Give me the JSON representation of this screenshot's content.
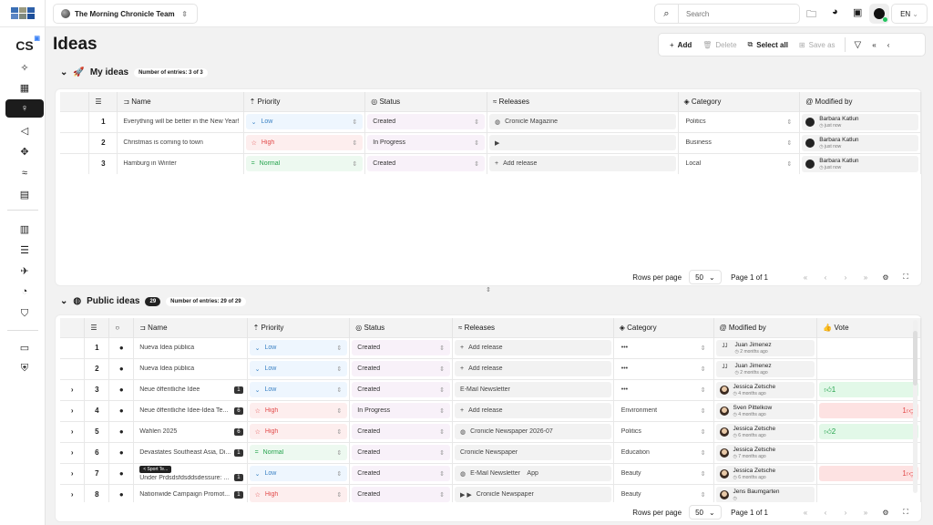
{
  "app": {
    "team": "The Morning Chronicle Team",
    "search_placeholder": "Search",
    "lang": "EN",
    "page_title": "Ideas",
    "cs_label": "CS"
  },
  "sidebar": {
    "icons": [
      "cs-icon",
      "sparkles-icon",
      "grid-icon",
      "lightbulb-icon",
      "megaphone-icon",
      "modules-icon",
      "rss-icon",
      "clipboard-icon",
      "library-icon",
      "database-icon",
      "satellite-icon",
      "palette-icon",
      "shield-check-icon",
      "server-icon",
      "shield-gear-icon"
    ],
    "active": "lightbulb-icon"
  },
  "toolbar": {
    "add": "Add",
    "delete": "Delete",
    "select_all": "Select all",
    "save_as": "Save as"
  },
  "my_ideas": {
    "title": "My ideas",
    "count_label": "Number of entries: 3 of 3",
    "columns": [
      "Name",
      "Priority",
      "Status",
      "Releases",
      "Category",
      "Modified by"
    ],
    "rows": [
      {
        "n": "1",
        "name": "Everything will be better in the New Year!",
        "priority": "Low",
        "status": "Created",
        "release": "Cronicle Magazine",
        "release_icon": "globe",
        "category": "Politics",
        "user": "Barbara Katlun",
        "time": "just now"
      },
      {
        "n": "2",
        "name": "Christmas is coming to town",
        "priority": "High",
        "status": "In Progress",
        "release": "",
        "release_icon": "youtube",
        "category": "Business",
        "user": "Barbara Katlun",
        "time": "just now"
      },
      {
        "n": "3",
        "name": "Hamburg in Winter",
        "priority": "Normal",
        "status": "Created",
        "release": "Add release",
        "release_icon": "plus",
        "category": "Local",
        "user": "Barbara Katlun",
        "time": "just now"
      }
    ],
    "pager": {
      "rows_per_page": "Rows per page",
      "size": "50",
      "page": "Page 1 of 1"
    }
  },
  "public_ideas": {
    "title": "Public ideas",
    "badge": "29",
    "count_label": "Number of entries: 29 of 29",
    "columns": [
      "Name",
      "Priority",
      "Status",
      "Releases",
      "Category",
      "Modified by",
      "Vote"
    ],
    "rows": [
      {
        "n": "1",
        "exp": false,
        "name": "Nueva Idea pública",
        "cnt": "",
        "priority": "Low",
        "status": "Created",
        "release": "Add release",
        "release_icon": "plus",
        "category": "•••",
        "user": "Juan Jimenez",
        "av": "jj",
        "time": "2 months ago",
        "vote": "",
        "vote_dir": ""
      },
      {
        "n": "2",
        "exp": false,
        "name": "Nueva Idea pública",
        "cnt": "",
        "priority": "Low",
        "status": "Created",
        "release": "Add release",
        "release_icon": "plus",
        "category": "•••",
        "user": "Juan Jimenez",
        "av": "jj",
        "time": "2 months ago",
        "vote": "",
        "vote_dir": ""
      },
      {
        "n": "3",
        "exp": true,
        "name": "Neue öffentliche Idee",
        "cnt": "1",
        "priority": "Low",
        "status": "Created",
        "release": "E-Mail Newsletter",
        "release_icon": "",
        "category": "•••",
        "user": "Jessica Zetsche",
        "av": "ph",
        "time": "4 months ago",
        "vote": "1",
        "vote_dir": "up"
      },
      {
        "n": "4",
        "exp": true,
        "name": "Neue öffentliche Idee-Idea Te...",
        "cnt": "6",
        "priority": "High",
        "status": "In Progress",
        "release": "Add release",
        "release_icon": "plus",
        "category": "Environment",
        "user": "Sven Pittelkow",
        "av": "ph",
        "time": "4 months ago",
        "vote": "1",
        "vote_dir": "down"
      },
      {
        "n": "5",
        "exp": true,
        "name": "Wahlen 2025",
        "cnt": "6",
        "priority": "High",
        "status": "Created",
        "release": "Cronicle Newspaper 2026-07",
        "release_icon": "globe",
        "category": "Politics",
        "user": "Jessica Zetsche",
        "av": "ph",
        "time": "6 months ago",
        "vote": "2",
        "vote_dir": "up"
      },
      {
        "n": "6",
        "exp": true,
        "name": "Devastates Southeast Asia, Di...",
        "cnt": "1",
        "priority": "Normal",
        "status": "Created",
        "release": "Cronicle Newspaper",
        "release_icon": "",
        "category": "Education",
        "user": "Jessica Zetsche",
        "av": "ph",
        "time": "7 months ago",
        "vote": "",
        "vote_dir": ""
      },
      {
        "n": "7",
        "exp": true,
        "name": "Under Prdsdsfdsddsdessure: ...",
        "cnt": "1",
        "priority": "Low",
        "status": "Created",
        "release": "E-Mail Newsletter    App",
        "release_icon": "globe",
        "category": "Beauty",
        "user": "Jessica Zetsche",
        "av": "ph",
        "time": "6 months ago",
        "vote": "1",
        "vote_dir": "down"
      },
      {
        "n": "8",
        "exp": true,
        "name": "Nationwide Campaign Promot...",
        "cnt": "1",
        "priority": "High",
        "status": "Created",
        "release": "Cronicle Newspaper",
        "release_icon": "youtube2",
        "category": "Beauty",
        "user": "Jens Baumgarten",
        "av": "ph",
        "time": "",
        "vote": "",
        "vote_dir": ""
      }
    ],
    "tag": "< Sport Te...",
    "pager": {
      "rows_per_page": "Rows per page",
      "size": "50",
      "page": "Page 1 of 1"
    }
  },
  "colors": {
    "low": "#3b82c4",
    "high": "#e24b4b",
    "normal": "#22a24b",
    "active_nav": "#1c1c1c"
  }
}
